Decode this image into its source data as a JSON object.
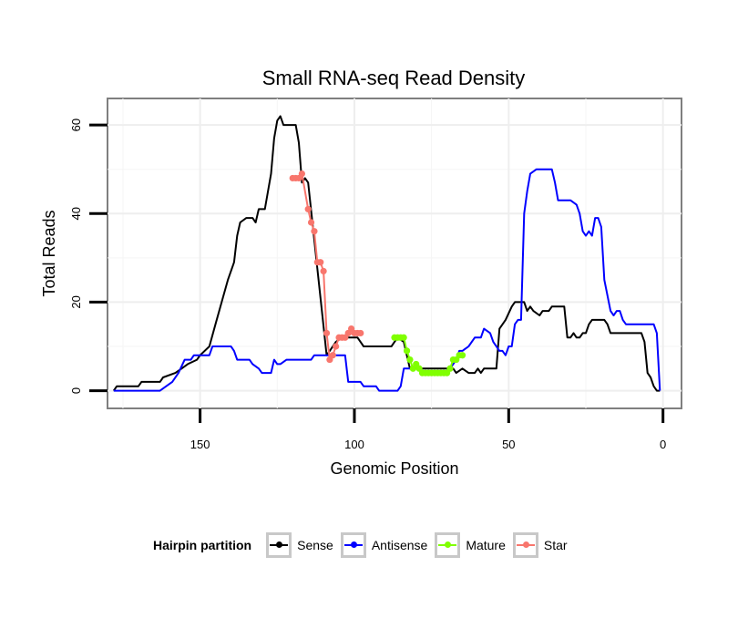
{
  "chart_data": {
    "type": "line",
    "title": "Small RNA-seq Read Density",
    "xlabel": "Genomic Position",
    "ylabel": "Total Reads",
    "xlim": [
      180,
      -6
    ],
    "x_reversed": true,
    "ylim": [
      -4,
      66
    ],
    "xticks": [
      150,
      100,
      50,
      0
    ],
    "yticks": [
      0,
      20,
      40,
      60
    ],
    "grid": true,
    "legend": {
      "title": "Hairpin partition",
      "position": "bottom",
      "entries": [
        {
          "name": "Sense",
          "color": "#000000"
        },
        {
          "name": "Antisense",
          "color": "#0000ff"
        },
        {
          "name": "Mature",
          "color": "#80ff00"
        },
        {
          "name": "Star",
          "color": "#f8766d"
        }
      ]
    },
    "series": [
      {
        "name": "Sense",
        "color": "#000000",
        "points": [
          [
            178,
            0
          ],
          [
            177,
            1
          ],
          [
            170,
            1
          ],
          [
            169,
            2
          ],
          [
            163,
            2
          ],
          [
            162,
            3
          ],
          [
            158,
            4
          ],
          [
            156,
            5
          ],
          [
            154,
            6
          ],
          [
            151,
            7
          ],
          [
            150,
            8
          ],
          [
            147,
            10
          ],
          [
            145,
            15
          ],
          [
            143,
            20
          ],
          [
            141,
            25
          ],
          [
            139,
            29
          ],
          [
            138,
            35
          ],
          [
            137,
            38
          ],
          [
            135,
            39
          ],
          [
            133,
            39
          ],
          [
            132,
            38
          ],
          [
            131,
            41
          ],
          [
            129,
            41
          ],
          [
            128,
            45
          ],
          [
            127,
            49
          ],
          [
            126,
            57
          ],
          [
            125,
            61
          ],
          [
            124,
            62
          ],
          [
            123,
            60
          ],
          [
            120,
            60
          ],
          [
            119,
            60
          ],
          [
            118,
            56
          ],
          [
            117,
            47
          ],
          [
            116,
            48
          ],
          [
            115,
            47
          ],
          [
            109,
            8
          ],
          [
            108,
            9
          ],
          [
            106,
            11
          ],
          [
            104,
            12
          ],
          [
            101,
            12
          ],
          [
            100,
            12
          ],
          [
            99,
            12
          ],
          [
            98,
            11
          ],
          [
            97,
            10
          ],
          [
            89,
            10
          ],
          [
            88,
            10
          ],
          [
            87,
            11
          ],
          [
            86,
            12
          ],
          [
            84,
            11
          ],
          [
            83,
            8
          ],
          [
            82,
            5
          ],
          [
            68,
            5
          ],
          [
            67,
            4
          ],
          [
            65,
            5
          ],
          [
            63,
            4
          ],
          [
            61,
            4
          ],
          [
            60,
            5
          ],
          [
            59,
            4
          ],
          [
            58,
            5
          ],
          [
            54,
            5
          ],
          [
            53,
            14
          ],
          [
            51,
            16
          ],
          [
            49,
            19
          ],
          [
            48,
            20
          ],
          [
            45,
            20
          ],
          [
            44,
            18
          ],
          [
            43,
            19
          ],
          [
            42,
            18
          ],
          [
            40,
            17
          ],
          [
            39,
            18
          ],
          [
            37,
            18
          ],
          [
            36,
            19
          ],
          [
            33,
            19
          ],
          [
            32,
            19
          ],
          [
            31,
            12
          ],
          [
            30,
            12
          ],
          [
            29,
            13
          ],
          [
            28,
            12
          ],
          [
            27,
            12
          ],
          [
            26,
            13
          ],
          [
            25,
            13
          ],
          [
            24,
            15
          ],
          [
            23,
            16
          ],
          [
            19,
            16
          ],
          [
            18,
            15
          ],
          [
            17,
            13
          ],
          [
            7,
            13
          ],
          [
            6,
            11
          ],
          [
            5,
            4
          ],
          [
            4,
            3
          ],
          [
            3,
            1
          ],
          [
            2,
            0
          ],
          [
            1,
            0
          ]
        ]
      },
      {
        "name": "Antisense",
        "color": "#0000ff",
        "points": [
          [
            178,
            0
          ],
          [
            163,
            0
          ],
          [
            161,
            1
          ],
          [
            159,
            2
          ],
          [
            157,
            4
          ],
          [
            155,
            7
          ],
          [
            153,
            7
          ],
          [
            152,
            8
          ],
          [
            147,
            8
          ],
          [
            146,
            10
          ],
          [
            140,
            10
          ],
          [
            139,
            9
          ],
          [
            138,
            7
          ],
          [
            134,
            7
          ],
          [
            133,
            6
          ],
          [
            131,
            5
          ],
          [
            130,
            4
          ],
          [
            127,
            4
          ],
          [
            126,
            7
          ],
          [
            125,
            6
          ],
          [
            124,
            6
          ],
          [
            122,
            7
          ],
          [
            114,
            7
          ],
          [
            113,
            8
          ],
          [
            103,
            8
          ],
          [
            102,
            2
          ],
          [
            98,
            2
          ],
          [
            97,
            1
          ],
          [
            93,
            1
          ],
          [
            92,
            0
          ],
          [
            86,
            0
          ],
          [
            85,
            1
          ],
          [
            84,
            5
          ],
          [
            79,
            5
          ],
          [
            78,
            4
          ],
          [
            72,
            4
          ],
          [
            71,
            4
          ],
          [
            69,
            5
          ],
          [
            68,
            6
          ],
          [
            67,
            7
          ],
          [
            66,
            9
          ],
          [
            65,
            9
          ],
          [
            63,
            10
          ],
          [
            61,
            12
          ],
          [
            59,
            12
          ],
          [
            58,
            14
          ],
          [
            56,
            13
          ],
          [
            55,
            11
          ],
          [
            53,
            9
          ],
          [
            52,
            9
          ],
          [
            51,
            8
          ],
          [
            50,
            10
          ],
          [
            49,
            10
          ],
          [
            48,
            15
          ],
          [
            47,
            16
          ],
          [
            46,
            16
          ],
          [
            45,
            40
          ],
          [
            44,
            45
          ],
          [
            43,
            49
          ],
          [
            41,
            50
          ],
          [
            36,
            50
          ],
          [
            35,
            47
          ],
          [
            34,
            43
          ],
          [
            30,
            43
          ],
          [
            28,
            42
          ],
          [
            27,
            40
          ],
          [
            26,
            36
          ],
          [
            25,
            35
          ],
          [
            24,
            36
          ],
          [
            23,
            35
          ],
          [
            22,
            39
          ],
          [
            21,
            39
          ],
          [
            20,
            37
          ],
          [
            19,
            25
          ],
          [
            17,
            18
          ],
          [
            16,
            17
          ],
          [
            15,
            18
          ],
          [
            14,
            18
          ],
          [
            13,
            16
          ],
          [
            12,
            15
          ],
          [
            3,
            15
          ],
          [
            2,
            13
          ],
          [
            1,
            0
          ]
        ]
      },
      {
        "name": "Mature",
        "color": "#80ff00",
        "points": [
          [
            87,
            12
          ],
          [
            86,
            12
          ],
          [
            85,
            12
          ],
          [
            84,
            12
          ],
          [
            83,
            9
          ],
          [
            82,
            7
          ],
          [
            81,
            5
          ],
          [
            80,
            6
          ],
          [
            79,
            5
          ],
          [
            78,
            4
          ],
          [
            77,
            4
          ],
          [
            76,
            4
          ],
          [
            75,
            4
          ],
          [
            74,
            4
          ],
          [
            73,
            4
          ],
          [
            72,
            4
          ],
          [
            71,
            4
          ],
          [
            70,
            4
          ],
          [
            69,
            5
          ],
          [
            68,
            7
          ],
          [
            67,
            7
          ],
          [
            66,
            8
          ],
          [
            65,
            8
          ]
        ]
      },
      {
        "name": "Star",
        "color": "#f8766d",
        "points": [
          [
            120,
            48
          ],
          [
            119,
            48
          ],
          [
            118,
            48
          ],
          [
            117,
            49
          ],
          [
            115,
            41
          ],
          [
            114,
            38
          ],
          [
            113,
            36
          ],
          [
            112,
            29
          ],
          [
            111,
            29
          ],
          [
            110,
            27
          ],
          [
            109,
            13
          ],
          [
            108,
            7
          ],
          [
            107,
            8
          ],
          [
            106,
            10
          ],
          [
            105,
            12
          ],
          [
            104,
            12
          ],
          [
            103,
            12
          ],
          [
            102,
            13
          ],
          [
            101,
            14
          ],
          [
            100,
            13
          ],
          [
            99,
            13
          ],
          [
            98,
            13
          ]
        ]
      }
    ]
  }
}
